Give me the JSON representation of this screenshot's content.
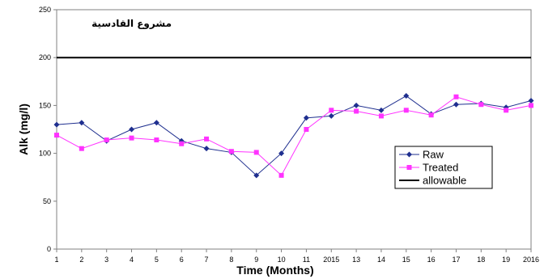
{
  "chart_data": {
    "type": "line",
    "title": "",
    "annotation": "مشروع القادسية",
    "xlabel": "Time (Months)",
    "ylabel": "Alk (mg/l)",
    "categories": [
      "1",
      "2",
      "3",
      "4",
      "5",
      "6",
      "7",
      "8",
      "9",
      "10",
      "11",
      "2015",
      "13",
      "14",
      "15",
      "16",
      "17",
      "18",
      "19",
      "2016"
    ],
    "ylim": [
      0,
      250
    ],
    "yticks": [
      0,
      50,
      100,
      150,
      200,
      250
    ],
    "grid": false,
    "legend_position": "bottom-right",
    "series": [
      {
        "name": "Raw",
        "color": "#1f2f8f",
        "marker": "diamond",
        "values": [
          130,
          132,
          113,
          125,
          132,
          113,
          105,
          101,
          77,
          100,
          137,
          139,
          150,
          145,
          160,
          141,
          151,
          152,
          148,
          155
        ]
      },
      {
        "name": "Treated",
        "color": "#ff33ff",
        "marker": "square",
        "values": [
          119,
          105,
          114,
          116,
          114,
          110,
          115,
          102,
          101,
          77,
          125,
          145,
          144,
          139,
          145,
          140,
          159,
          151,
          145,
          150
        ]
      },
      {
        "name": "allowable",
        "color": "#000000",
        "marker": "none",
        "values": [
          200,
          200,
          200,
          200,
          200,
          200,
          200,
          200,
          200,
          200,
          200,
          200,
          200,
          200,
          200,
          200,
          200,
          200,
          200,
          200
        ]
      }
    ]
  }
}
